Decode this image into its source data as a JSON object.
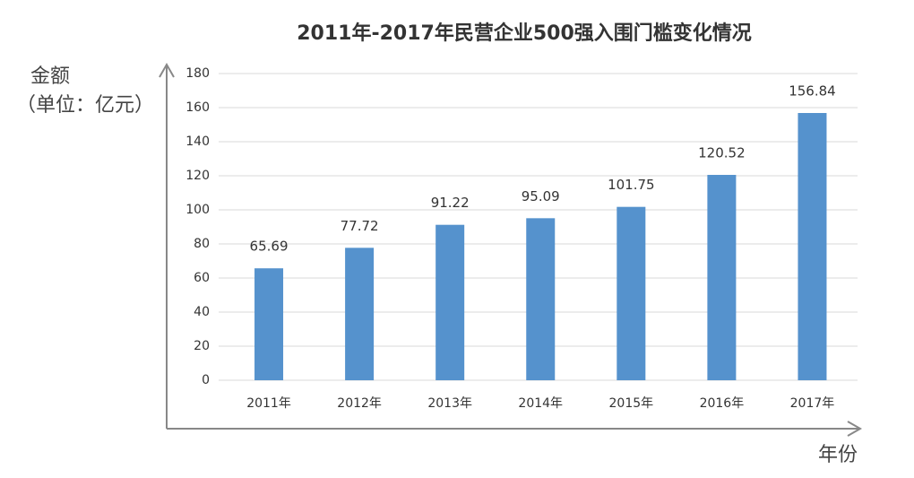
{
  "chart_data": {
    "type": "bar",
    "title": "2011年-2017年民营企业500强入围门槛变化情况",
    "y_label": [
      "金额",
      "（单位：亿元）"
    ],
    "x_label": "年份",
    "categories": [
      "2011年",
      "2012年",
      "2013年",
      "2014年",
      "2015年",
      "2016年",
      "2017年"
    ],
    "values": [
      65.69,
      77.72,
      91.22,
      95.09,
      101.75,
      120.52,
      156.84
    ],
    "color": "#5592cd",
    "ylim": [
      0,
      180
    ],
    "yticks": [
      0,
      20,
      40,
      60,
      80,
      100,
      120,
      140,
      160,
      180
    ],
    "grid": true
  }
}
